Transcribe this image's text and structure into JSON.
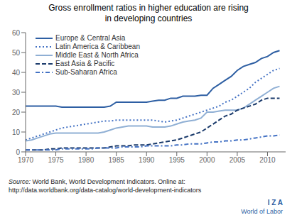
{
  "chart_data": {
    "type": "line",
    "title": "Gross enrollment ratios in higher education are rising\nin developing countries",
    "x": [
      1970,
      1971,
      1972,
      1973,
      1974,
      1975,
      1976,
      1977,
      1978,
      1979,
      1980,
      1981,
      1982,
      1983,
      1984,
      1985,
      1986,
      1987,
      1988,
      1989,
      1990,
      1991,
      1992,
      1993,
      1994,
      1995,
      1996,
      1997,
      1998,
      1999,
      2000,
      2001,
      2002,
      2003,
      2004,
      2005,
      2006,
      2007,
      2008,
      2009,
      2010,
      2011,
      2012
    ],
    "xlim": [
      1970,
      2013
    ],
    "xticks": [
      1970,
      1975,
      1980,
      1985,
      1990,
      1995,
      2000,
      2005,
      2010
    ],
    "ylim": [
      0,
      60
    ],
    "yticks": [
      0,
      10,
      20,
      30,
      40,
      50,
      60
    ],
    "grid": false,
    "legend": "upper left",
    "series": [
      {
        "name": "Europe & Central Asia",
        "color": "#2e5fa3",
        "line_style": "solid",
        "values": [
          23,
          23,
          23,
          23,
          23,
          23,
          22.5,
          22.5,
          22.5,
          22.5,
          22.5,
          22.5,
          22.5,
          22.5,
          23,
          25,
          25,
          25,
          25,
          25,
          25,
          25.5,
          26,
          26,
          27,
          27,
          28,
          28,
          28,
          28.5,
          28.5,
          32,
          34,
          36,
          38,
          41,
          43,
          44,
          45,
          47,
          48,
          50,
          51
        ]
      },
      {
        "name": "Latin America & Caribbean",
        "color": "#4472c4",
        "line_style": "dotted",
        "values": [
          6,
          7,
          8,
          9,
          10,
          11,
          12,
          12.5,
          13,
          13.5,
          14,
          14.5,
          15,
          15.5,
          15.5,
          16,
          16,
          16,
          16,
          16,
          16,
          16,
          15.5,
          15,
          15.5,
          16,
          17,
          18,
          19,
          20,
          21,
          22,
          23,
          25,
          26,
          28,
          30,
          32,
          35,
          37,
          39,
          41,
          42
        ]
      },
      {
        "name": "Middle East & North Africa",
        "color": "#8fafd4",
        "line_style": "solid",
        "values": [
          5.5,
          6,
          7,
          8,
          9,
          9.5,
          9.5,
          9.5,
          9.5,
          9.5,
          9.5,
          9.5,
          9.5,
          10,
          11,
          12,
          12.5,
          13,
          13,
          13,
          13,
          12.5,
          12.5,
          12.5,
          13,
          14,
          15,
          15.5,
          16,
          17,
          20,
          20,
          20.5,
          21,
          21,
          21,
          22,
          24,
          26,
          28,
          30,
          32,
          33
        ]
      },
      {
        "name": "East Asia & Pacific",
        "color": "#1a3a6b",
        "line_style": "dashed",
        "values": [
          1,
          1,
          1,
          1,
          1.5,
          1.5,
          2,
          2,
          2,
          2,
          2,
          2,
          2,
          2,
          2.5,
          3,
          3,
          3,
          3.5,
          3.5,
          3.5,
          4,
          4.5,
          5,
          5.5,
          6,
          7,
          8,
          9,
          10,
          12,
          14,
          16,
          18,
          19,
          21,
          22,
          23,
          24,
          26,
          27,
          27,
          27
        ]
      },
      {
        "name": "Sub-Saharan Africa",
        "color": "#4472c4",
        "line_style": "dashdot",
        "values": [
          1,
          1,
          1,
          1,
          1,
          1,
          1.5,
          1.5,
          1.5,
          1.5,
          1.5,
          1.5,
          2,
          2,
          2,
          2,
          2.5,
          2.5,
          2.5,
          2.5,
          3,
          3,
          3,
          3,
          3,
          3.5,
          3.5,
          4,
          4,
          4,
          4.5,
          5,
          5,
          5.5,
          5.5,
          6,
          6,
          6.5,
          7,
          7.5,
          8,
          8,
          8.5
        ]
      }
    ],
    "annotations": [
      "Source: World Bank, World Development Indicators. Online at:",
      "http://data.worldbank.org/data-catalog/world-development-indicators",
      "I Z A",
      "World of Labor"
    ]
  }
}
